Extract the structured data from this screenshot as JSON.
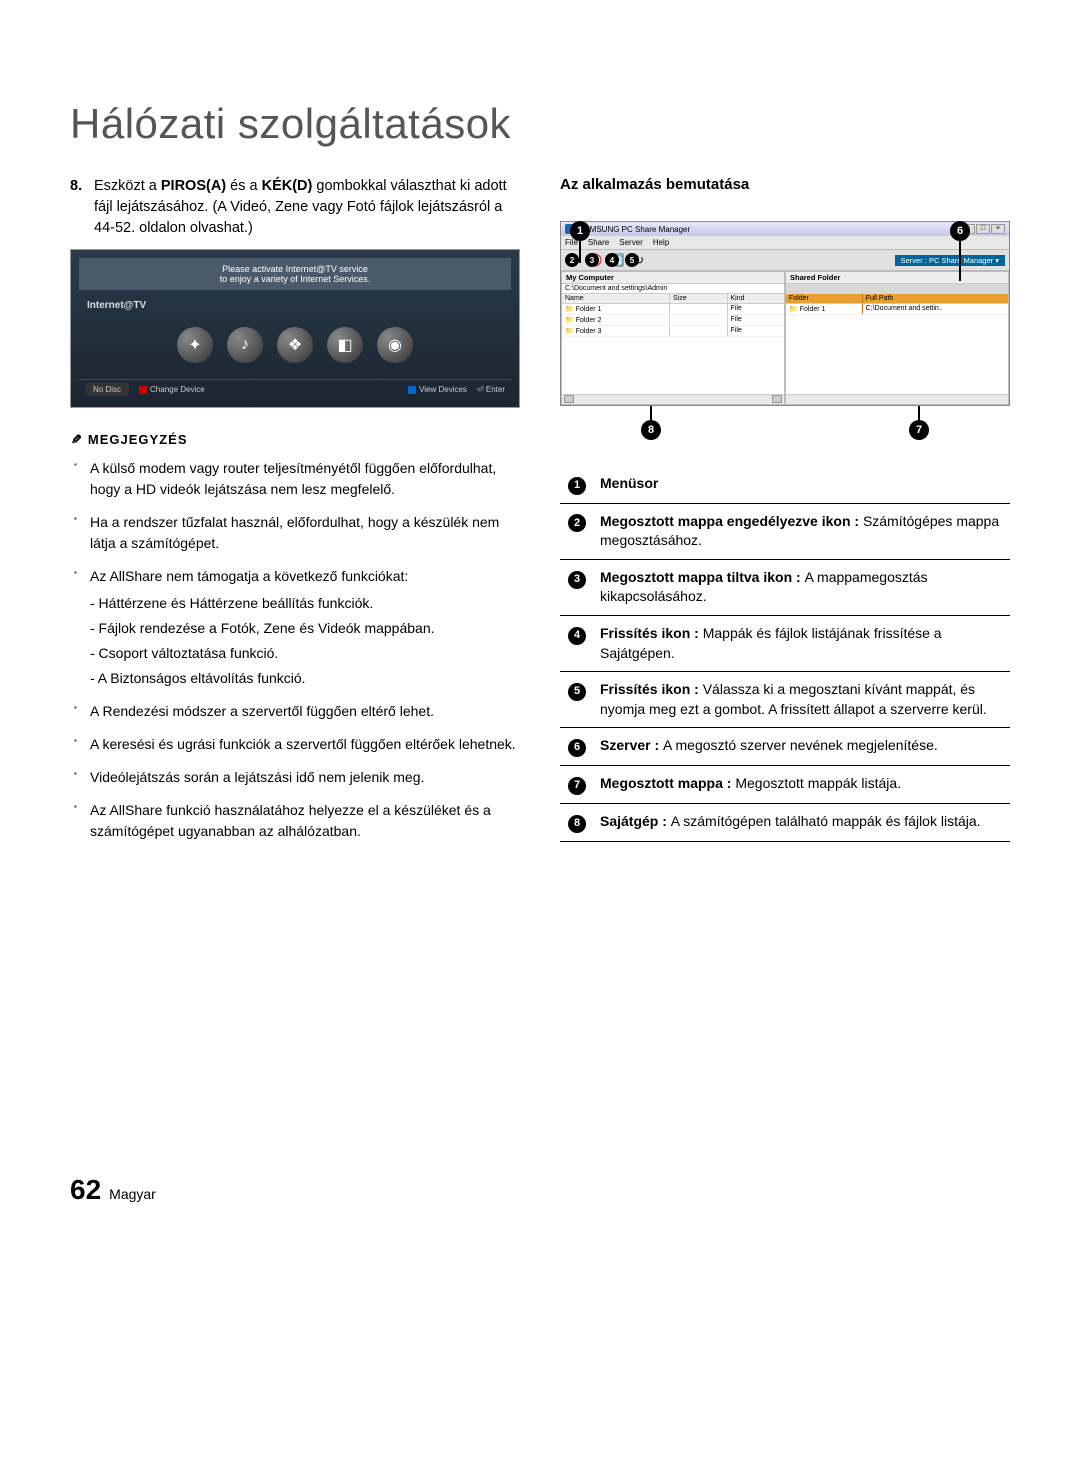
{
  "pageTitle": "Hálózati szolgáltatások",
  "step": {
    "num": "8.",
    "textA": "Eszközt a ",
    "boldA": "PIROS(A)",
    "textB": " és a ",
    "boldB": "KÉK(D)",
    "textC": " gombokkal választhat ki adott fájl lejátszásához. (A Videó, Zene vagy Fotó fájlok lejátszásról a 44-52. oldalon olvashat.)"
  },
  "tv": {
    "banner1": "Please activate Internet@TV service",
    "banner2": "to enjoy a variety of Internet Services.",
    "label": "Internet@TV",
    "footer": {
      "noDisc": "No Disc",
      "change": "Change Device",
      "view": "View Devices",
      "enter": "Enter"
    }
  },
  "noteHeading": "MEGJEGYZÉS",
  "bullets": [
    "A külső modem vagy router teljesítményétől függően előfordulhat, hogy a HD videók lejátszása nem lesz megfelelő.",
    "Ha a rendszer tűzfalat használ, előfordulhat, hogy a készülék nem látja a számítógépet.",
    "Az AllShare nem támogatja a következő funkciókat:"
  ],
  "subDashes": [
    "- Háttérzene és Háttérzene beállítás funkciók.",
    "- Fájlok rendezése a Fotók, Zene és Videók mappában.",
    "- Csoport változtatása funkció.",
    "- A Biztonságos eltávolítás funkció."
  ],
  "bullets2": [
    "A Rendezési módszer a szervertől függően eltérő lehet.",
    "A keresési és ugrási funkciók a szervertől függően eltérőek lehetnek.",
    "Videólejátszás során a lejátszási idő nem jelenik meg.",
    "Az AllShare funkció használatához helyezze el a készüléket és a számítógépet ugyanabban az alhálózatban."
  ],
  "rightHeading": "Az alkalmazás bemutatása",
  "app": {
    "title": "SAMSUNG PC Share Manager",
    "menus": [
      "File",
      "Share",
      "Server",
      "Help"
    ],
    "serverLabel": "Server : PC Share Manager ▾",
    "leftPanel": {
      "head": "My Computer",
      "path": "C:\\Document and settings\\Admin",
      "cols": {
        "name": "Name",
        "size": "Size",
        "kind": "Kind"
      },
      "rows": [
        {
          "name": "Folder 1",
          "size": "",
          "kind": "File"
        },
        {
          "name": "Folder 2",
          "size": "",
          "kind": "File"
        },
        {
          "name": "Folder 3",
          "size": "",
          "kind": "File"
        }
      ]
    },
    "rightPanel": {
      "head": "Shared Folder",
      "cols": {
        "folder": "Folder",
        "path": "Full Path"
      },
      "rows": [
        {
          "folder": "Folder 1",
          "path": "C:\\Document and settin.."
        }
      ]
    }
  },
  "legend": [
    {
      "n": "1",
      "bold": "Menüsor",
      "text": ""
    },
    {
      "n": "2",
      "bold": "Megosztott mappa engedélyezve ikon : ",
      "text": "Számítógépes mappa megosztásához."
    },
    {
      "n": "3",
      "bold": "Megosztott mappa tiltva ikon : ",
      "text": "A mappamegosztás kikapcsolásához."
    },
    {
      "n": "4",
      "bold": "Frissítés ikon : ",
      "text": "Mappák és fájlok listájának frissítése a Sajátgépen."
    },
    {
      "n": "5",
      "bold": "Frissítés ikon : ",
      "text": "Válassza ki a megosztani kívánt mappát, és nyomja meg ezt a gombot. A frissített állapot a szerverre kerül."
    },
    {
      "n": "6",
      "bold": "Szerver : ",
      "text": "A megosztó szerver nevének megjelenítése."
    },
    {
      "n": "7",
      "bold": "Megosztott mappa : ",
      "text": "Megosztott mappák listája."
    },
    {
      "n": "8",
      "bold": "Sajátgép : ",
      "text": "A számítógépen található mappák és fájlok listája."
    }
  ],
  "pageNum": "62",
  "pageLang": "Magyar"
}
